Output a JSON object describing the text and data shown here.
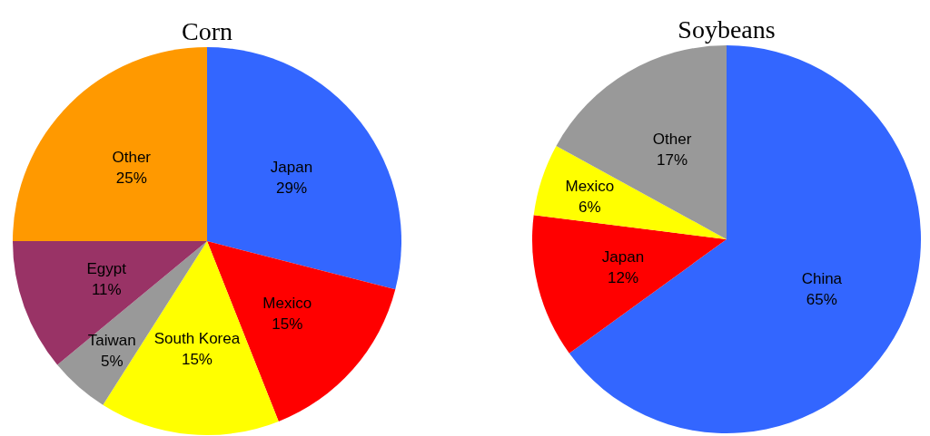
{
  "chart_data": [
    {
      "type": "pie",
      "title": "Corn",
      "categories": [
        "Japan",
        "Mexico",
        "South Korea",
        "Taiwan",
        "Egypt",
        "Other"
      ],
      "values": [
        29,
        15,
        15,
        5,
        11,
        25
      ],
      "value_labels": [
        "29%",
        "15%",
        "15%",
        "5%",
        "11%",
        "25%"
      ],
      "colors": [
        "#3366ff",
        "#ff0000",
        "#ffff00",
        "#999999",
        "#993366",
        "#ff9900"
      ]
    },
    {
      "type": "pie",
      "title": "Soybeans",
      "categories": [
        "China",
        "Japan",
        "Mexico",
        "Other"
      ],
      "values": [
        65,
        12,
        6,
        17
      ],
      "value_labels": [
        "65%",
        "12%",
        "6%",
        "17%"
      ],
      "colors": [
        "#3366ff",
        "#ff0000",
        "#ffff00",
        "#999999"
      ]
    }
  ]
}
